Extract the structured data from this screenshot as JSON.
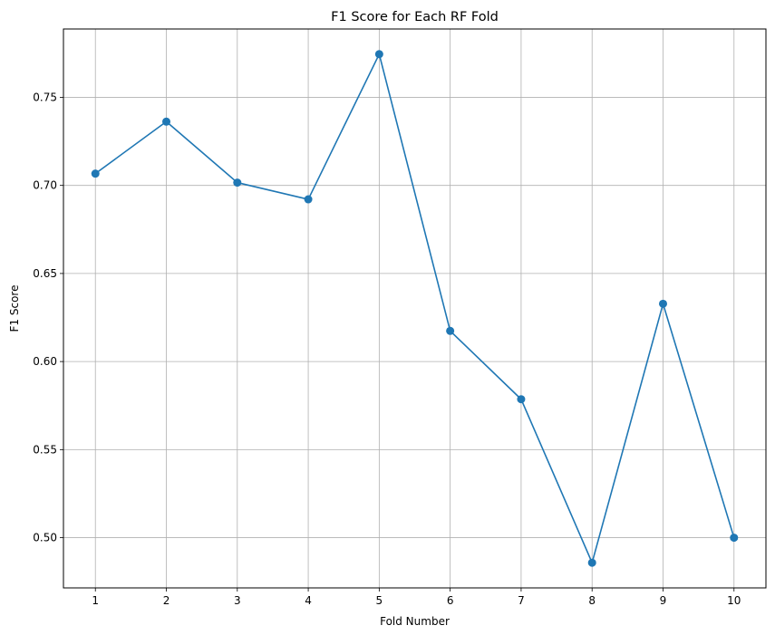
{
  "chart_data": {
    "type": "line",
    "title": "F1 Score for Each RF Fold",
    "xlabel": "Fold Number",
    "ylabel": "F1 Score",
    "x": [
      1,
      2,
      3,
      4,
      5,
      6,
      7,
      8,
      9,
      10
    ],
    "x_tick_labels": [
      "1",
      "2",
      "3",
      "4",
      "5",
      "6",
      "7",
      "8",
      "9",
      "10"
    ],
    "series": [
      {
        "values": [
          0.7067,
          0.7362,
          0.7016,
          0.6921,
          0.7745,
          0.6174,
          0.5786,
          0.4858,
          0.6328,
          0.5
        ],
        "color": "#1f77b4",
        "marker": "circle"
      }
    ],
    "y_ticks": [
      0.5,
      0.55,
      0.6,
      0.65,
      0.7,
      0.75
    ],
    "y_tick_labels": [
      "0.50",
      "0.55",
      "0.60",
      "0.65",
      "0.70",
      "0.75"
    ],
    "xlim": [
      0.55,
      10.45
    ],
    "ylim": [
      0.4715,
      0.7888
    ],
    "grid": true,
    "grid_color": "#b0b0b0"
  }
}
